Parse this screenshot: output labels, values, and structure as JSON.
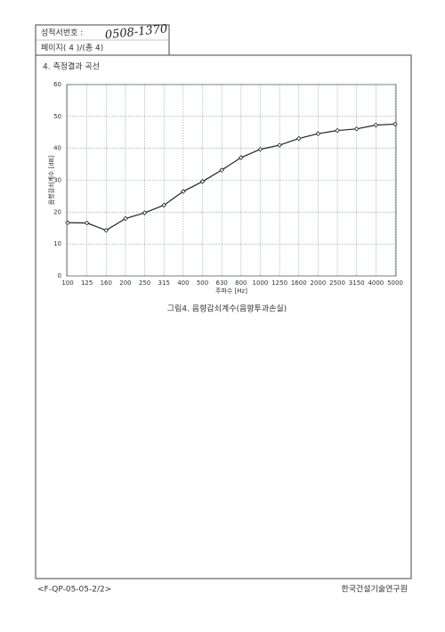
{
  "header": {
    "report_number_label": "성적서번호 :",
    "report_number": "0508-1370",
    "page": "페이지( 4 )/(총 4)"
  },
  "section_title": "4. 측정결과 곡선",
  "chart_data": {
    "type": "line",
    "y_label": "음향감쇠계수 [dB]",
    "x_label": "주파수 [Hz]",
    "categories": [
      "100",
      "125",
      "160",
      "200",
      "250",
      "315",
      "400",
      "500",
      "630",
      "800",
      "1000",
      "1250",
      "1600",
      "2000",
      "2500",
      "3150",
      "4000",
      "5000"
    ],
    "series": [
      {
        "name": "음향감쇠계수",
        "color": "#222222",
        "values": [
          16.7,
          16.6,
          14.3,
          18.0,
          19.8,
          22.2,
          26.5,
          29.6,
          33.2,
          37.1,
          39.7,
          41.0,
          43.1,
          44.6,
          45.6,
          46.1,
          47.3,
          47.6
        ]
      }
    ],
    "ylim": [
      0,
      60
    ],
    "yticks": [
      0,
      10,
      20,
      30,
      40,
      50,
      60
    ],
    "grid": true
  },
  "caption": "그림4. 음향감쇠계수(음향투과손실)",
  "footer": {
    "form_code": "<F-QP-05-05-2/2>",
    "institute": "한국건설기술연구원"
  }
}
